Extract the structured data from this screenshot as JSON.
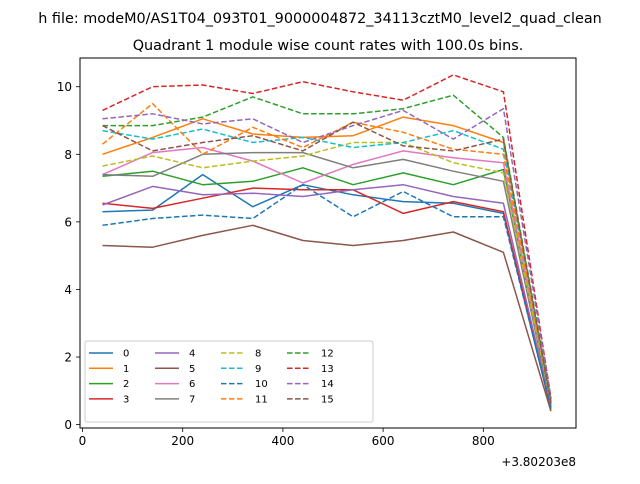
{
  "chart_data": {
    "type": "line",
    "suptitle": "h file: modeM0/AS1T04_093T01_9000004872_34113cztM0_level2_quad_clean",
    "title": "Quadrant 1 module wise count rates with 100.0s bins.",
    "xlabel": "",
    "ylabel": "",
    "xlim": [
      -5,
      985
    ],
    "ylim": [
      -0.1,
      10.85
    ],
    "x_offset_label": "+3.80203e8",
    "x_ticks": [
      0,
      200,
      400,
      600,
      800
    ],
    "x_tick_labels": [
      "0",
      "200",
      "400",
      "600",
      "800"
    ],
    "y_ticks": [
      0,
      2,
      4,
      6,
      8,
      10
    ],
    "y_tick_labels": [
      "0",
      "2",
      "4",
      "6",
      "8",
      "10"
    ],
    "grid": false,
    "legend_position": "lower-left",
    "legend_columns": 4,
    "x": [
      40,
      140,
      240,
      340,
      440,
      540,
      640,
      740,
      840,
      935
    ],
    "series": [
      {
        "name": "0",
        "color": "#1f77b4",
        "dash": "solid",
        "values": [
          6.3,
          6.35,
          7.4,
          6.45,
          7.1,
          6.8,
          6.6,
          6.55,
          6.25,
          0.45
        ]
      },
      {
        "name": "1",
        "color": "#ff7f0e",
        "dash": "solid",
        "values": [
          8.0,
          8.5,
          9.05,
          8.6,
          8.5,
          8.55,
          9.1,
          8.85,
          8.35,
          0.7
        ]
      },
      {
        "name": "2",
        "color": "#2ca02c",
        "dash": "solid",
        "values": [
          7.35,
          7.5,
          7.1,
          7.2,
          7.6,
          7.1,
          7.45,
          7.1,
          7.55,
          0.6
        ]
      },
      {
        "name": "3",
        "color": "#d62728",
        "dash": "solid",
        "values": [
          6.55,
          6.4,
          6.7,
          7.0,
          6.95,
          6.95,
          6.25,
          6.6,
          6.3,
          0.5
        ]
      },
      {
        "name": "4",
        "color": "#9467bd",
        "dash": "solid",
        "values": [
          6.5,
          7.05,
          6.8,
          6.85,
          6.75,
          6.95,
          7.1,
          6.75,
          6.55,
          0.55
        ]
      },
      {
        "name": "5",
        "color": "#8c564b",
        "dash": "solid",
        "values": [
          5.3,
          5.25,
          5.6,
          5.9,
          5.45,
          5.3,
          5.45,
          5.7,
          5.1,
          0.4
        ]
      },
      {
        "name": "6",
        "color": "#e377c2",
        "dash": "solid",
        "values": [
          7.4,
          8.05,
          8.2,
          7.8,
          7.15,
          7.7,
          8.1,
          7.9,
          7.75,
          0.65
        ]
      },
      {
        "name": "7",
        "color": "#7f7f7f",
        "dash": "solid",
        "values": [
          7.4,
          7.35,
          8.0,
          8.05,
          8.05,
          7.6,
          7.85,
          7.5,
          7.2,
          0.6
        ]
      },
      {
        "name": "8",
        "color": "#bcbd22",
        "dash": "dashed",
        "values": [
          7.65,
          7.95,
          7.6,
          7.8,
          7.95,
          8.35,
          8.35,
          7.75,
          7.45,
          0.65
        ]
      },
      {
        "name": "9",
        "color": "#17becf",
        "dash": "dashed",
        "values": [
          8.7,
          8.45,
          8.75,
          8.35,
          8.5,
          8.2,
          8.35,
          8.7,
          8.15,
          0.7
        ]
      },
      {
        "name": "10",
        "color": "#1f77b4",
        "dash": "dashed",
        "values": [
          5.9,
          6.1,
          6.2,
          6.1,
          7.1,
          6.15,
          6.9,
          6.15,
          6.15,
          0.5
        ]
      },
      {
        "name": "11",
        "color": "#ff7f0e",
        "dash": "dashed",
        "values": [
          8.3,
          9.5,
          8.0,
          8.8,
          8.2,
          8.95,
          8.65,
          8.15,
          8.0,
          0.7
        ]
      },
      {
        "name": "12",
        "color": "#2ca02c",
        "dash": "dashed",
        "values": [
          8.85,
          8.85,
          9.1,
          9.7,
          9.2,
          9.2,
          9.35,
          9.75,
          8.5,
          0.75
        ]
      },
      {
        "name": "13",
        "color": "#d62728",
        "dash": "dashed",
        "values": [
          9.3,
          10.0,
          10.05,
          9.8,
          10.15,
          9.85,
          9.6,
          10.35,
          9.85,
          0.8
        ]
      },
      {
        "name": "14",
        "color": "#9467bd",
        "dash": "dashed",
        "values": [
          9.05,
          9.2,
          8.9,
          9.05,
          8.35,
          8.85,
          9.3,
          8.45,
          9.35,
          0.8
        ]
      },
      {
        "name": "15",
        "color": "#8c564b",
        "dash": "dashed",
        "values": [
          8.85,
          8.1,
          8.35,
          8.55,
          8.1,
          8.95,
          8.25,
          8.1,
          8.45,
          0.65
        ]
      }
    ]
  }
}
